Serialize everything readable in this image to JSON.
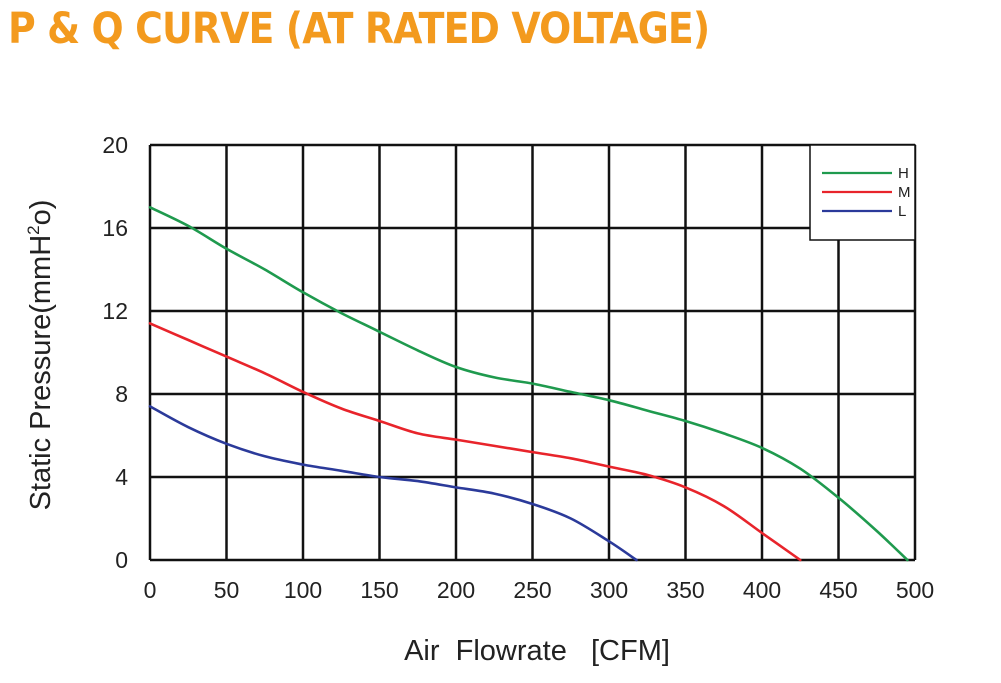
{
  "chart_data": {
    "type": "line",
    "title": "P & Q CURVE (AT RATED VOLTAGE)",
    "xlabel": "Air  Flowrate   [CFM]",
    "ylabel_main": "Static Pressure(mmH",
    "ylabel_sup": "2",
    "ylabel_tail": "o)",
    "xlim": [
      0,
      500
    ],
    "ylim": [
      0,
      20
    ],
    "xticks": [
      0,
      50,
      100,
      150,
      200,
      250,
      300,
      350,
      400,
      450,
      500
    ],
    "yticks": [
      0,
      4,
      8,
      12,
      16,
      20
    ],
    "grid": true,
    "legend_position": "top-right",
    "series": [
      {
        "name": "H",
        "color": "#1f9a4e",
        "x": [
          0,
          25,
          50,
          75,
          100,
          125,
          150,
          175,
          200,
          225,
          250,
          275,
          300,
          325,
          350,
          375,
          400,
          425,
          450,
          475,
          495
        ],
        "y": [
          17.0,
          16.1,
          15.0,
          14.0,
          12.9,
          11.9,
          11.0,
          10.1,
          9.3,
          8.8,
          8.5,
          8.1,
          7.7,
          7.2,
          6.7,
          6.1,
          5.4,
          4.4,
          3.0,
          1.4,
          0.0
        ]
      },
      {
        "name": "M",
        "color": "#e8242b",
        "x": [
          0,
          25,
          50,
          75,
          100,
          125,
          150,
          175,
          200,
          225,
          250,
          275,
          300,
          325,
          350,
          375,
          400,
          425
        ],
        "y": [
          11.4,
          10.6,
          9.8,
          9.0,
          8.1,
          7.3,
          6.7,
          6.1,
          5.8,
          5.5,
          5.2,
          4.9,
          4.5,
          4.1,
          3.5,
          2.6,
          1.3,
          0.0
        ]
      },
      {
        "name": "L",
        "color": "#2b3a9a",
        "x": [
          0,
          25,
          50,
          75,
          100,
          125,
          150,
          175,
          200,
          225,
          250,
          275,
          300,
          318
        ],
        "y": [
          7.4,
          6.4,
          5.6,
          5.0,
          4.6,
          4.3,
          4.0,
          3.8,
          3.5,
          3.2,
          2.7,
          2.0,
          0.9,
          0.0
        ]
      }
    ]
  }
}
